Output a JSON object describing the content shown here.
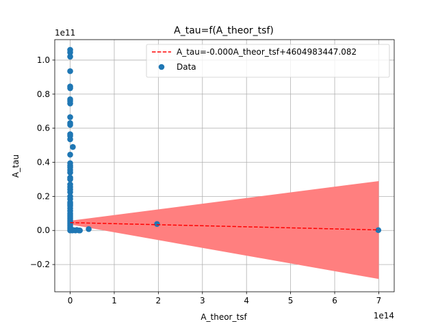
{
  "chart_data": {
    "type": "scatter",
    "title": "A_tau=f(A_theor_tsf)",
    "xlabel": "A_theor_tsf",
    "ylabel": "A_tau",
    "x_offset_text": "1e14",
    "y_offset_text": "1e11",
    "xlim": [
      -0.35,
      7.35
    ],
    "ylim": [
      -0.36,
      1.12
    ],
    "xticks": [
      0,
      1,
      2,
      3,
      4,
      5,
      6,
      7
    ],
    "yticks": [
      -0.2,
      0.0,
      0.2,
      0.4,
      0.6,
      0.8,
      1.0
    ],
    "xtick_labels": [
      "0",
      "1",
      "2",
      "3",
      "4",
      "5",
      "6",
      "7"
    ],
    "ytick_labels": [
      "−0.2",
      "0.0",
      "0.2",
      "0.4",
      "0.6",
      "0.8",
      "1.0"
    ],
    "grid": true,
    "legend_position": "top-right",
    "legend": {
      "fit_label": "A_tau=-0.000A_theor_tsf+4604983447.082",
      "data_label": "Data"
    },
    "fit_line": {
      "x": [
        0,
        7
      ],
      "y": [
        0.046,
        0.003
      ],
      "color": "#ff0000",
      "style": "dashed"
    },
    "confidence_band": {
      "color": "#ff7f7f",
      "x": [
        0,
        7
      ],
      "upper": [
        0.057,
        0.29
      ],
      "lower": [
        0.035,
        -0.285
      ]
    },
    "series": [
      {
        "name": "Data",
        "color": "#1f77b4",
        "points": [
          {
            "x": 0,
            "y": 1.06
          },
          {
            "x": 0,
            "y": 1.045
          },
          {
            "x": 0,
            "y": 1.02
          },
          {
            "x": 0,
            "y": 0.935
          },
          {
            "x": 0,
            "y": 0.845
          },
          {
            "x": 0,
            "y": 0.835
          },
          {
            "x": 0,
            "y": 0.77
          },
          {
            "x": 0,
            "y": 0.76
          },
          {
            "x": 0,
            "y": 0.745
          },
          {
            "x": 0,
            "y": 0.665
          },
          {
            "x": 0,
            "y": 0.63
          },
          {
            "x": 0,
            "y": 0.62
          },
          {
            "x": 0,
            "y": 0.565
          },
          {
            "x": 0,
            "y": 0.555
          },
          {
            "x": 0,
            "y": 0.535
          },
          {
            "x": 0.06,
            "y": 0.49
          },
          {
            "x": 0,
            "y": 0.445
          },
          {
            "x": 0,
            "y": 0.395
          },
          {
            "x": 0,
            "y": 0.38
          },
          {
            "x": 0,
            "y": 0.37
          },
          {
            "x": 0,
            "y": 0.355
          },
          {
            "x": 0,
            "y": 0.34
          },
          {
            "x": 0,
            "y": 0.31
          },
          {
            "x": 0,
            "y": 0.3
          },
          {
            "x": 0,
            "y": 0.27
          },
          {
            "x": 0,
            "y": 0.255
          },
          {
            "x": 0,
            "y": 0.24
          },
          {
            "x": 0,
            "y": 0.225
          },
          {
            "x": 0,
            "y": 0.2
          },
          {
            "x": 0,
            "y": 0.185
          },
          {
            "x": 0,
            "y": 0.165
          },
          {
            "x": 0,
            "y": 0.155
          },
          {
            "x": 0,
            "y": 0.145
          },
          {
            "x": 0,
            "y": 0.13
          },
          {
            "x": 0,
            "y": 0.115
          },
          {
            "x": 0,
            "y": 0.1
          },
          {
            "x": 0,
            "y": 0.09
          },
          {
            "x": 0,
            "y": 0.08
          },
          {
            "x": 0,
            "y": 0.07
          },
          {
            "x": 0,
            "y": 0.06
          },
          {
            "x": 0,
            "y": 0.05
          },
          {
            "x": 0,
            "y": 0.04
          },
          {
            "x": 0,
            "y": 0.03
          },
          {
            "x": 0,
            "y": 0.02
          },
          {
            "x": 0,
            "y": 0.01
          },
          {
            "x": 0,
            "y": 0.0
          },
          {
            "x": 0.03,
            "y": 0.005
          },
          {
            "x": 0.05,
            "y": 0.0
          },
          {
            "x": 0.08,
            "y": 0.002
          },
          {
            "x": 0.12,
            "y": 0.0
          },
          {
            "x": 0.15,
            "y": 0.003
          },
          {
            "x": 0.2,
            "y": 0.0
          },
          {
            "x": 0.22,
            "y": 0.0
          },
          {
            "x": 0.42,
            "y": 0.008
          },
          {
            "x": 1.97,
            "y": 0.038
          },
          {
            "x": 6.99,
            "y": 0.002
          }
        ]
      }
    ]
  }
}
